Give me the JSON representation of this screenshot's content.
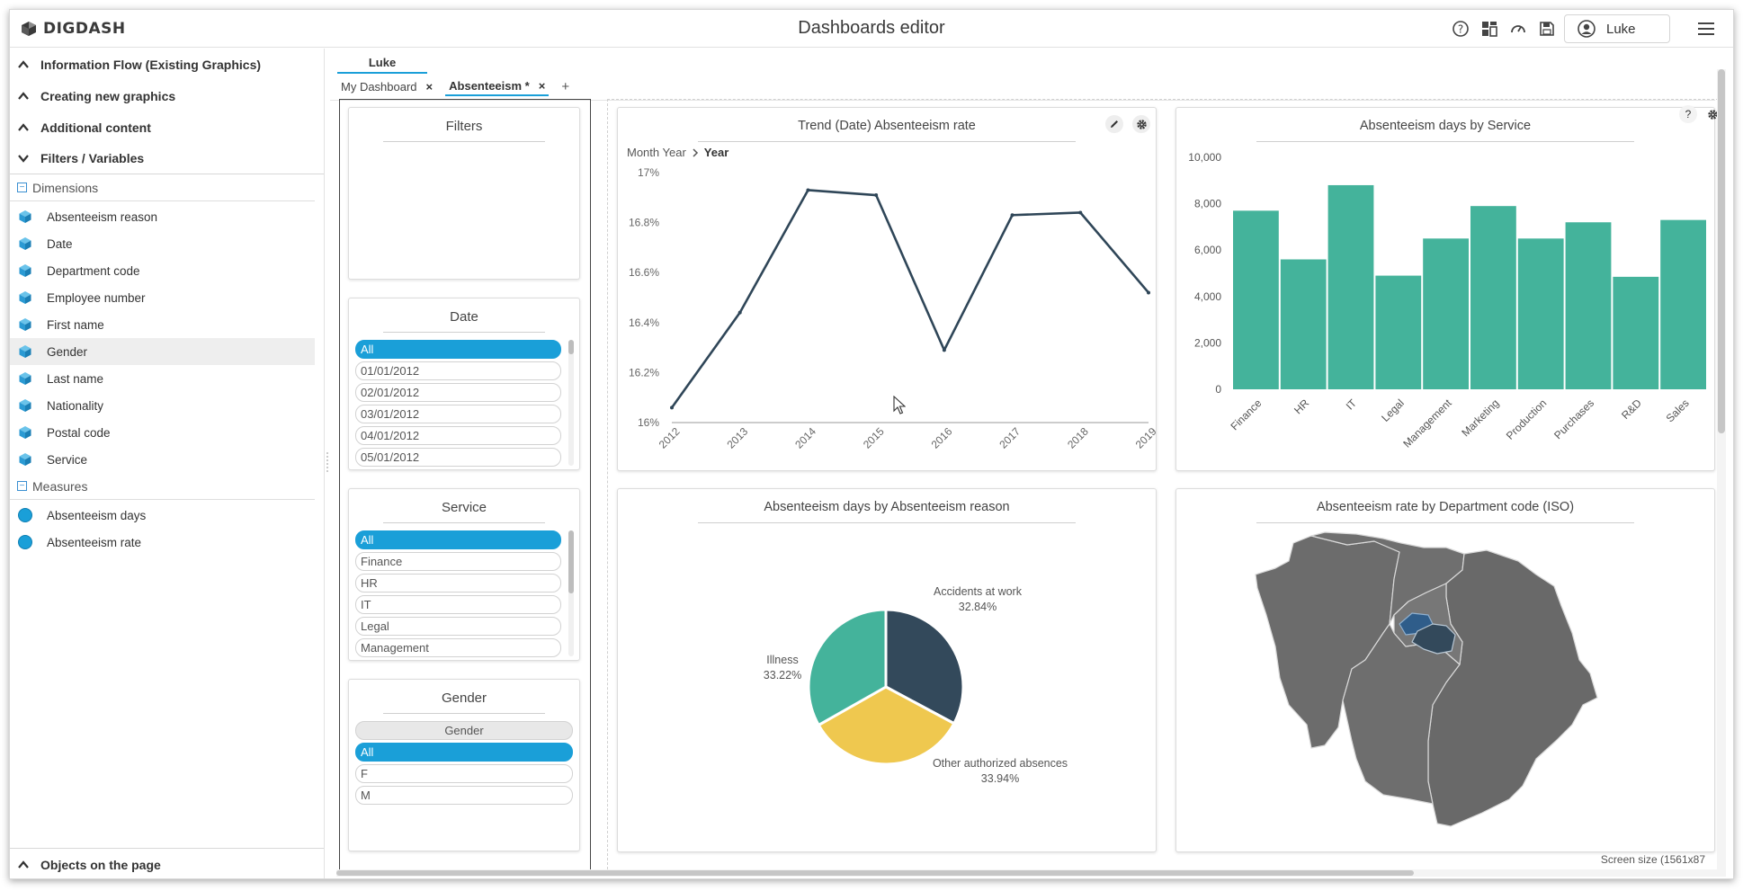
{
  "app": {
    "logo_text": "DIGDASH",
    "title": "Dashboards editor",
    "user_name": "Luke",
    "toolbar_icons": [
      "help-icon",
      "dashboard-wizard-icon",
      "speedometer-icon",
      "save-icon"
    ]
  },
  "left_panel": {
    "sections": [
      {
        "label": "Information Flow (Existing Graphics)",
        "state": "collapsed"
      },
      {
        "label": "Creating new graphics",
        "state": "collapsed"
      },
      {
        "label": "Additional content",
        "state": "collapsed"
      },
      {
        "label": "Filters / Variables",
        "state": "expanded"
      }
    ],
    "dimensions_label": "Dimensions",
    "dimensions": [
      "Absenteeism reason",
      "Date",
      "Department code",
      "Employee number",
      "First name",
      "Gender",
      "Last name",
      "Nationality",
      "Postal code",
      "Service"
    ],
    "selected_dimension": "Gender",
    "measures_label": "Measures",
    "measures": [
      "Absenteeism days",
      "Absenteeism rate"
    ],
    "bottom_section": "Objects on the page"
  },
  "tabs": {
    "user_tab": "Luke",
    "documents": [
      {
        "label": "My Dashboard",
        "active": false
      },
      {
        "label": "Absenteeism *",
        "active": true
      }
    ],
    "add_label": "+",
    "close_label": "×"
  },
  "filters": {
    "panel_title": "Filters",
    "date": {
      "title": "Date",
      "items": [
        "All",
        "01/01/2012",
        "02/01/2012",
        "03/01/2012",
        "04/01/2012",
        "05/01/2012"
      ],
      "selected": "All"
    },
    "service": {
      "title": "Service",
      "items": [
        "All",
        "Finance",
        "HR",
        "IT",
        "Legal",
        "Management"
      ],
      "selected": "All"
    },
    "gender": {
      "title": "Gender",
      "header": "Gender",
      "items": [
        "All",
        "F",
        "M"
      ],
      "selected": "All"
    }
  },
  "charts": {
    "trend": {
      "title": "Trend (Date) Absenteeism rate",
      "drill_from": "Month Year",
      "drill_to": "Year"
    },
    "service_bars": {
      "title": "Absenteeism days by Service"
    },
    "reason_pie": {
      "title": "Absenteeism days by Absenteeism reason"
    },
    "department_map": {
      "title": "Absenteeism rate by Department code (ISO)"
    }
  },
  "chart_data": [
    {
      "type": "line",
      "title": "Trend (Date) Absenteeism rate",
      "x": [
        "2012",
        "2013",
        "2014",
        "2015",
        "2016",
        "2017",
        "2018",
        "2019"
      ],
      "values": [
        16.06,
        16.44,
        16.93,
        16.91,
        16.29,
        16.83,
        16.84,
        16.52
      ],
      "ylim": [
        16.0,
        17.0
      ],
      "yticks": [
        16.0,
        16.2,
        16.4,
        16.6,
        16.8,
        17.0
      ],
      "ytick_labels": [
        "16%",
        "16.2%",
        "16.4%",
        "16.6%",
        "16.8%",
        "17%"
      ],
      "color": "#2f4658"
    },
    {
      "type": "bar",
      "title": "Absenteeism days by Service",
      "categories": [
        "Finance",
        "HR",
        "IT",
        "Legal",
        "Management",
        "Marketing",
        "Production",
        "Purchases",
        "R&D",
        "Sales"
      ],
      "values": [
        7700,
        5600,
        8800,
        4900,
        6500,
        7900,
        6500,
        7200,
        4850,
        7300
      ],
      "ylim": [
        0,
        10000
      ],
      "yticks": [
        0,
        2000,
        4000,
        6000,
        8000,
        10000
      ],
      "ytick_labels": [
        "0",
        "2,000",
        "4,000",
        "6,000",
        "8,000",
        "10,000"
      ],
      "color": "#44b39b"
    },
    {
      "type": "pie",
      "title": "Absenteeism days by Absenteeism reason",
      "slices": [
        {
          "label": "Accidents at work",
          "value": 32.84,
          "display": "32.84%",
          "color": "#33495b"
        },
        {
          "label": "Other authorized absences",
          "value": 33.94,
          "display": "33.94%",
          "color": "#efc84f"
        },
        {
          "label": "Illness",
          "value": 33.22,
          "display": "33.22%",
          "color": "#44b39b"
        }
      ]
    }
  ],
  "footer": {
    "screen_size": "Screen size (1561x87"
  }
}
